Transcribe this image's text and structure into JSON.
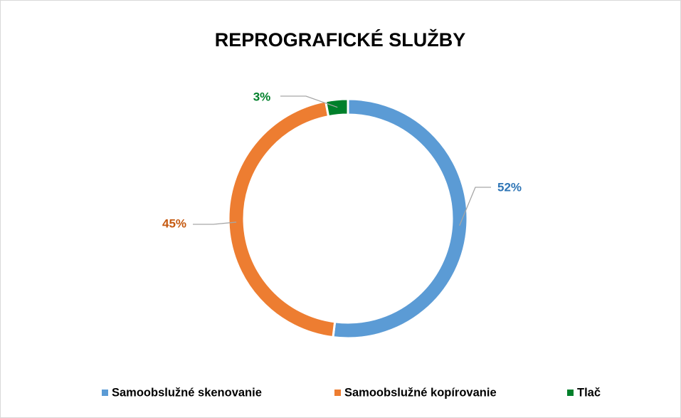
{
  "chart_data": {
    "type": "donut",
    "title": "REPROGRAFICKÉ SLUŽBY",
    "categories": [
      "Samoobslužné skenovanie",
      "Samoobslužné kopírovanie",
      "Tlač"
    ],
    "values": [
      52,
      45,
      3
    ],
    "value_labels": [
      "52%",
      "45%",
      "3%"
    ],
    "colors": [
      "#5b9bd5",
      "#ed7d31",
      "#00802b"
    ],
    "legend": "bottom"
  }
}
